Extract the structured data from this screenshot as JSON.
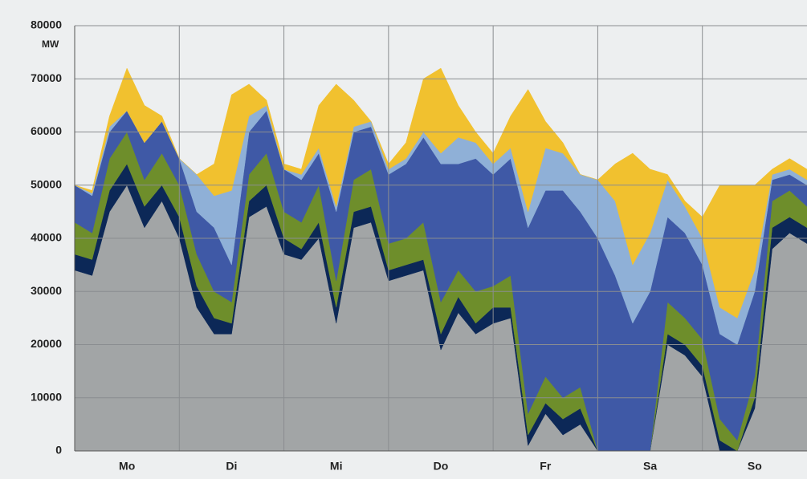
{
  "chart_data": {
    "type": "stacked-area",
    "y_label": "MW",
    "days": [
      "Mo",
      "Di",
      "Mi",
      "Do",
      "Fr",
      "Sa",
      "So"
    ],
    "x": [
      0,
      4,
      8,
      12,
      16,
      20,
      24,
      28,
      32,
      36,
      40,
      44,
      48,
      52,
      56,
      60,
      64,
      68,
      72,
      76,
      80,
      84,
      88,
      92,
      96,
      100,
      104,
      108,
      112,
      116,
      120,
      124,
      128,
      132,
      136,
      140,
      144,
      148,
      152,
      156,
      160,
      164,
      168
    ],
    "xlim": [
      0,
      168
    ],
    "ylim": [
      0,
      80000
    ],
    "yticks": [
      0,
      10000,
      20000,
      30000,
      40000,
      50000,
      60000,
      70000,
      80000
    ],
    "grid": true,
    "series": [
      {
        "color": "#a2a5a6",
        "values": [
          34000,
          33000,
          45000,
          50000,
          42000,
          47000,
          40000,
          27000,
          22000,
          22000,
          44000,
          46000,
          37000,
          36000,
          40000,
          24000,
          42000,
          43000,
          32000,
          33000,
          34000,
          19000,
          26000,
          22000,
          24000,
          25000,
          1000,
          7000,
          3000,
          5000,
          0,
          0,
          0,
          0,
          20000,
          18000,
          14000,
          0,
          0,
          8000,
          38000,
          41000,
          39000
        ]
      },
      {
        "color": "#0c2857",
        "values": [
          3000,
          3000,
          4000,
          4000,
          4000,
          3000,
          4000,
          4000,
          3000,
          2000,
          3000,
          4000,
          3000,
          2000,
          3000,
          3000,
          3000,
          3000,
          2000,
          2000,
          2000,
          3000,
          3000,
          2000,
          3000,
          2000,
          2000,
          2000,
          3000,
          3000,
          0,
          0,
          0,
          0,
          2000,
          2000,
          2000,
          2000,
          0,
          2000,
          4000,
          3000,
          3000
        ]
      },
      {
        "color": "#6e8e2b",
        "values": [
          6000,
          5000,
          6000,
          6000,
          5000,
          6000,
          6000,
          6000,
          5000,
          4000,
          5000,
          6000,
          5000,
          5000,
          7000,
          5000,
          6000,
          7000,
          5000,
          5000,
          7000,
          6000,
          5000,
          6000,
          4000,
          6000,
          4000,
          5000,
          4000,
          4000,
          0,
          0,
          0,
          0,
          6000,
          5000,
          5000,
          4000,
          2000,
          4000,
          5000,
          5000,
          4000
        ]
      },
      {
        "color": "#3f59a6",
        "values": [
          7000,
          7000,
          5000,
          4000,
          7000,
          6000,
          5000,
          8000,
          12000,
          7000,
          8000,
          8000,
          8000,
          8000,
          6000,
          13000,
          9000,
          8000,
          13000,
          14000,
          16000,
          26000,
          20000,
          25000,
          21000,
          22000,
          35000,
          35000,
          39000,
          33000,
          40000,
          33000,
          24000,
          30000,
          16000,
          16000,
          14000,
          16000,
          18000,
          16000,
          4000,
          3000,
          4000
        ]
      },
      {
        "color": "#8fb0d7",
        "values": [
          0,
          500,
          1000,
          0,
          0,
          0,
          0,
          7000,
          6000,
          14000,
          3000,
          1000,
          0,
          1000,
          1000,
          1000,
          1000,
          1000,
          1000,
          1000,
          1000,
          2000,
          5000,
          3000,
          2000,
          2000,
          3000,
          8000,
          7000,
          7000,
          11000,
          14000,
          11000,
          11000,
          7000,
          5000,
          5000,
          5000,
          5000,
          4000,
          1000,
          1000,
          1000
        ]
      },
      {
        "color": "#f1c12f",
        "values": [
          0,
          500,
          2000,
          8000,
          7000,
          1000,
          0,
          0,
          6000,
          18000,
          6000,
          1000,
          1000,
          1000,
          8000,
          23000,
          5000,
          0,
          1000,
          3000,
          10000,
          16000,
          6000,
          2000,
          2000,
          6000,
          23000,
          5000,
          2000,
          0,
          0,
          7000,
          21000,
          12000,
          1000,
          1000,
          4000,
          23000,
          25000,
          16000,
          1000,
          2000,
          2000
        ]
      }
    ]
  }
}
